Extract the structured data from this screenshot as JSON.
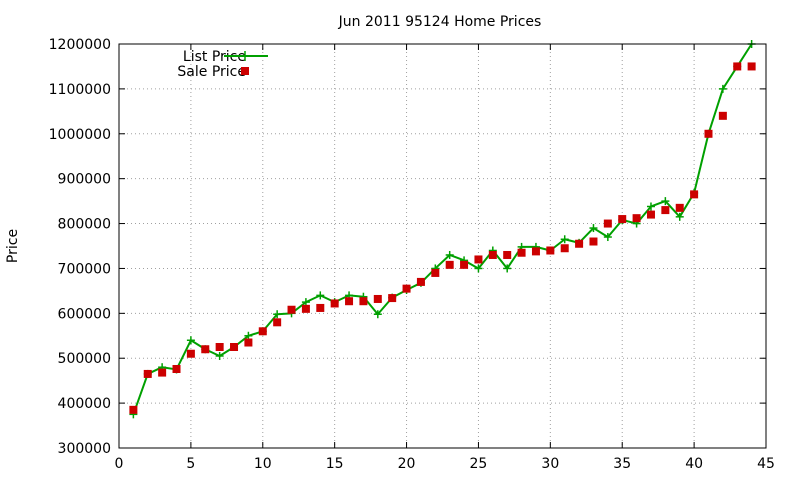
{
  "chart_data": {
    "type": "line",
    "title": "Jun 2011 95124 Home Prices",
    "xlabel": "",
    "ylabel": "Price",
    "xlim": [
      0,
      45
    ],
    "ylim": [
      300000,
      1200000
    ],
    "xticks": [
      0,
      5,
      10,
      15,
      20,
      25,
      30,
      35,
      40,
      45
    ],
    "yticks": [
      300000,
      400000,
      500000,
      600000,
      700000,
      800000,
      900000,
      1000000,
      1100000,
      1200000
    ],
    "grid": true,
    "legend_position": "top-left",
    "x": [
      1,
      2,
      3,
      4,
      5,
      6,
      7,
      8,
      9,
      10,
      11,
      12,
      13,
      14,
      15,
      16,
      17,
      18,
      19,
      20,
      21,
      22,
      23,
      24,
      25,
      26,
      27,
      28,
      29,
      30,
      31,
      32,
      33,
      34,
      35,
      36,
      37,
      38,
      39,
      40,
      41,
      42,
      43,
      44
    ],
    "series": [
      {
        "name": "List Price",
        "style": "linespoints",
        "color": "#00a000",
        "values": [
          375000,
          465000,
          480000,
          475000,
          540000,
          520000,
          505000,
          525000,
          550000,
          560000,
          598000,
          600000,
          625000,
          640000,
          625000,
          640000,
          637000,
          598000,
          635000,
          652000,
          668000,
          700000,
          730000,
          718000,
          700000,
          740000,
          700000,
          748000,
          748000,
          740000,
          765000,
          757000,
          790000,
          770000,
          808000,
          800000,
          838000,
          850000,
          815000,
          868000,
          1000000,
          1100000,
          1150000,
          1200000
        ]
      },
      {
        "name": "Sale Price",
        "style": "points",
        "color": "#cc0000",
        "values": [
          385000,
          465000,
          468000,
          476000,
          510000,
          520000,
          525000,
          525000,
          535000,
          560000,
          580000,
          608000,
          610000,
          612000,
          622000,
          627000,
          627000,
          632000,
          634000,
          655000,
          670000,
          690000,
          708000,
          708000,
          720000,
          730000,
          730000,
          735000,
          738000,
          740000,
          745000,
          755000,
          760000,
          800000,
          810000,
          812000,
          820000,
          830000,
          835000,
          865000,
          1000000,
          1040000,
          1150000,
          1150000
        ]
      }
    ]
  }
}
